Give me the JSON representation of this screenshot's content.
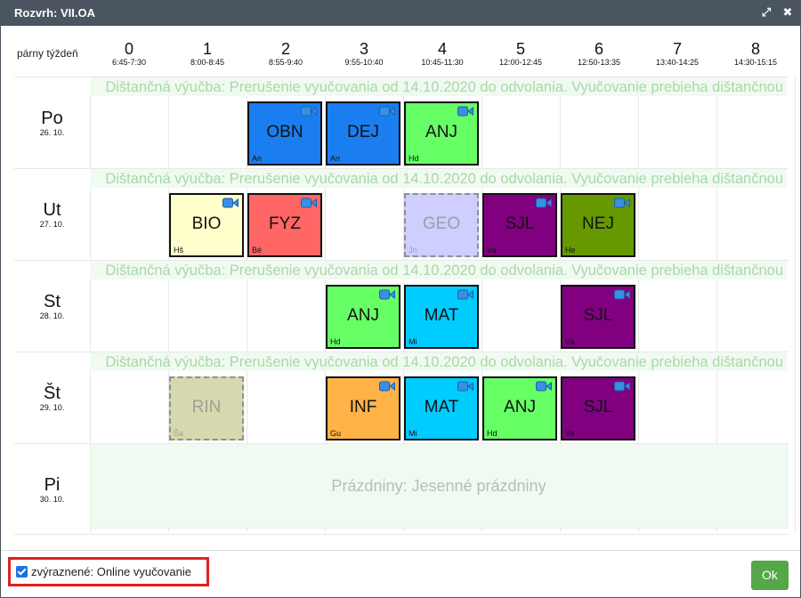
{
  "window": {
    "title": "Rozvrh: VII.OA"
  },
  "week_label": "párny týždeň",
  "periods": [
    {
      "num": "0",
      "time": "6:45-7:30"
    },
    {
      "num": "1",
      "time": "8:00-8:45"
    },
    {
      "num": "2",
      "time": "8:55-9:40"
    },
    {
      "num": "3",
      "time": "9:55-10:40"
    },
    {
      "num": "4",
      "time": "10:45-11:30"
    },
    {
      "num": "5",
      "time": "12:00-12:45"
    },
    {
      "num": "6",
      "time": "12:50-13:35"
    },
    {
      "num": "7",
      "time": "13:40-14:25"
    },
    {
      "num": "8",
      "time": "14:30-15:15"
    }
  ],
  "days": [
    {
      "name": "Po",
      "date": "26. 10."
    },
    {
      "name": "Ut",
      "date": "27. 10."
    },
    {
      "name": "St",
      "date": "28. 10."
    },
    {
      "name": "Št",
      "date": "29. 10."
    },
    {
      "name": "Pi",
      "date": "30. 10."
    }
  ],
  "note_text": "Dištančná výučba: Prerušenie vyučovania od 14.10.2020 do odvolania. Vyučovanie prebieha dištančnou",
  "holiday_text": "Prázdniny: Jesenné prázdniny",
  "lessons": [
    {
      "day": 0,
      "period": 2,
      "subject": "OBN",
      "teacher": "An",
      "color": "#1a7ef0",
      "online": true,
      "cancelled": false
    },
    {
      "day": 0,
      "period": 3,
      "subject": "DEJ",
      "teacher": "An",
      "color": "#1a7ef0",
      "online": true,
      "cancelled": false
    },
    {
      "day": 0,
      "period": 4,
      "subject": "ANJ",
      "teacher": "Hd",
      "color": "#66ff66",
      "online": true,
      "cancelled": false
    },
    {
      "day": 1,
      "period": 1,
      "subject": "BIO",
      "teacher": "Hš",
      "color": "#ffffcc",
      "online": true,
      "cancelled": false
    },
    {
      "day": 1,
      "period": 2,
      "subject": "FYZ",
      "teacher": "Bé",
      "color": "#ff6666",
      "online": true,
      "cancelled": false
    },
    {
      "day": 1,
      "period": 4,
      "subject": "GEO",
      "teacher": "Jn",
      "color": "#ccccff",
      "online": false,
      "cancelled": true
    },
    {
      "day": 1,
      "period": 5,
      "subject": "SJL",
      "teacher": "Va",
      "color": "#800080",
      "online": true,
      "cancelled": false
    },
    {
      "day": 1,
      "period": 6,
      "subject": "NEJ",
      "teacher": "He",
      "color": "#669900",
      "online": true,
      "cancelled": false
    },
    {
      "day": 2,
      "period": 3,
      "subject": "ANJ",
      "teacher": "Hd",
      "color": "#66ff66",
      "online": true,
      "cancelled": false
    },
    {
      "day": 2,
      "period": 4,
      "subject": "MAT",
      "teacher": "Mi",
      "color": "#00ccff",
      "online": true,
      "cancelled": false
    },
    {
      "day": 2,
      "period": 6,
      "subject": "SJL",
      "teacher": "Va",
      "color": "#800080",
      "online": true,
      "cancelled": false
    },
    {
      "day": 3,
      "period": 1,
      "subject": "RIN",
      "teacher": "Ša",
      "color": "#d6d6aa",
      "online": false,
      "cancelled": true
    },
    {
      "day": 3,
      "period": 3,
      "subject": "INF",
      "teacher": "Gu",
      "color": "#ffb347",
      "online": true,
      "cancelled": false
    },
    {
      "day": 3,
      "period": 4,
      "subject": "MAT",
      "teacher": "Mi",
      "color": "#00ccff",
      "online": true,
      "cancelled": false
    },
    {
      "day": 3,
      "period": 5,
      "subject": "ANJ",
      "teacher": "Hd",
      "color": "#66ff66",
      "online": true,
      "cancelled": false
    },
    {
      "day": 3,
      "period": 6,
      "subject": "SJL",
      "teacher": "Va",
      "color": "#800080",
      "online": true,
      "cancelled": false
    }
  ],
  "legend": {
    "label": "zvýraznené: Online vyučovanie",
    "checked": true
  },
  "ok_label": "Ok",
  "icons": {
    "expand": "expand-icon",
    "close": "close-icon",
    "camera": "video-camera-icon"
  }
}
